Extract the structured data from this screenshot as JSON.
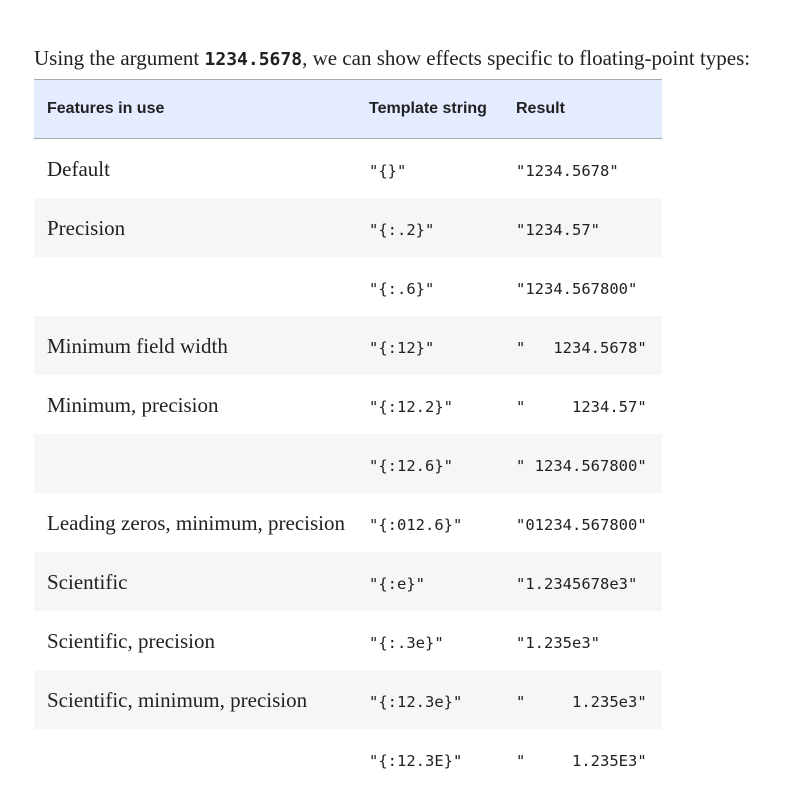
{
  "intro": {
    "before": "Using the argument ",
    "code": "1234.5678",
    "after": ", we can show effects specific to floating-point types:"
  },
  "table": {
    "headers": [
      "Features in use",
      "Template string",
      "Result"
    ],
    "rows": [
      {
        "feature": "Default",
        "template": "\"{}\"",
        "result": "\"1234.5678\""
      },
      {
        "feature": "Precision",
        "template": "\"{:.2}\"",
        "result": "\"1234.57\""
      },
      {
        "feature": "",
        "template": "\"{:.6}\"",
        "result": "\"1234.567800\""
      },
      {
        "feature": "Minimum field width",
        "template": "\"{:12}\"",
        "result": "\"   1234.5678\""
      },
      {
        "feature": "Minimum, precision",
        "template": "\"{:12.2}\"",
        "result": "\"     1234.57\""
      },
      {
        "feature": "",
        "template": "\"{:12.6}\"",
        "result": "\" 1234.567800\""
      },
      {
        "feature": "Leading zeros, minimum, precision",
        "template": "\"{:012.6}\"",
        "result": "\"01234.567800\""
      },
      {
        "feature": "Scientific",
        "template": "\"{:e}\"",
        "result": "\"1.2345678e3\""
      },
      {
        "feature": "Scientific, precision",
        "template": "\"{:.3e}\"",
        "result": "\"1.235e3\""
      },
      {
        "feature": "Scientific, minimum, precision",
        "template": "\"{:12.3e}\"",
        "result": "\"     1.235e3\""
      },
      {
        "feature": "",
        "template": "\"{:12.3E}\"",
        "result": "\"     1.235E3\""
      }
    ]
  }
}
